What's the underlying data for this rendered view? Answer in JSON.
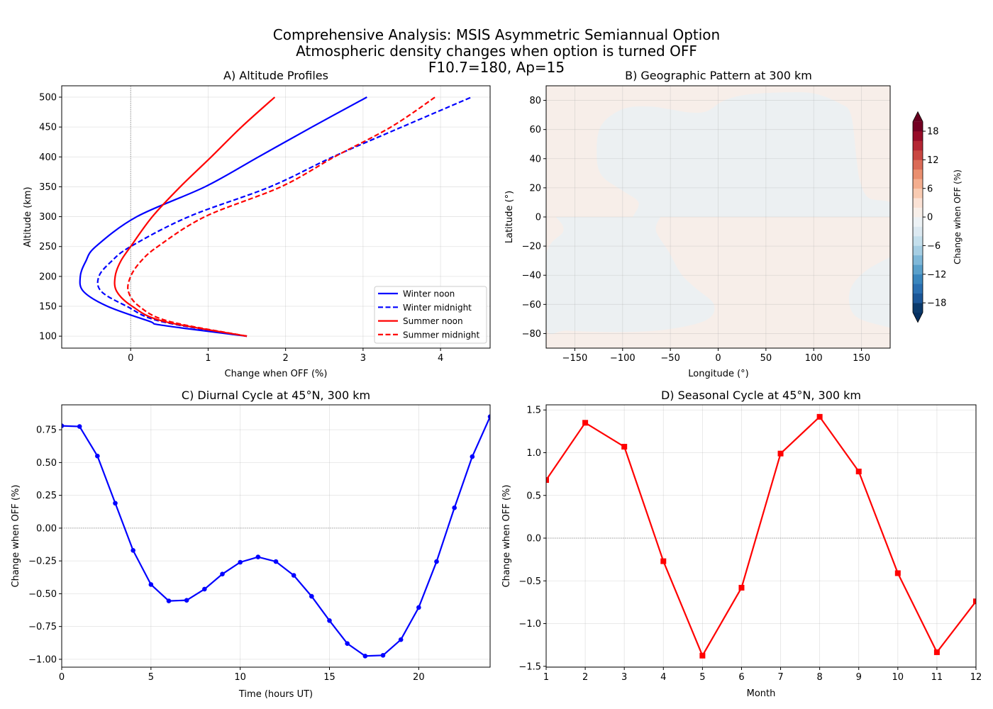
{
  "figure": {
    "title_lines": [
      "Comprehensive Analysis: MSIS Asymmetric Semiannual Option",
      "Atmospheric density changes when option is turned OFF",
      "F10.7=180, Ap=15"
    ]
  },
  "chart_data": [
    {
      "id": "A",
      "type": "line",
      "title": "A) Altitude Profiles",
      "xlabel": "Change when OFF (%)",
      "ylabel": "Altitude (km)",
      "xlim": [
        -0.89,
        4.64
      ],
      "ylim": [
        80,
        519
      ],
      "xticks": [
        0,
        1,
        2,
        3,
        4
      ],
      "yticks": [
        100,
        150,
        200,
        250,
        300,
        350,
        400,
        450,
        500
      ],
      "grid": true,
      "reference_line": {
        "axis": "x",
        "value": 0
      },
      "legend_position": "lower right",
      "series": [
        {
          "name": "Winter noon",
          "color": "#0000ff",
          "dash": false,
          "altitude": [
            100,
            118,
            125,
            150,
            175,
            200,
            225,
            250,
            300,
            350,
            400,
            450,
            500
          ],
          "change": [
            1.5,
            0.42,
            0.24,
            -0.3,
            -0.61,
            -0.65,
            -0.58,
            -0.45,
            0.08,
            0.96,
            1.65,
            2.34,
            3.05
          ]
        },
        {
          "name": "Winter midnight",
          "color": "#0000ff",
          "dash": true,
          "altitude": [
            100,
            125,
            150,
            175,
            200,
            225,
            250,
            300,
            350,
            400,
            450,
            500
          ],
          "change": [
            1.5,
            0.38,
            -0.05,
            -0.38,
            -0.41,
            -0.25,
            0.0,
            0.75,
            1.8,
            2.61,
            3.5,
            4.4
          ]
        },
        {
          "name": "Summer noon",
          "color": "#ff0000",
          "dash": false,
          "altitude": [
            100,
            125,
            150,
            175,
            200,
            225,
            250,
            300,
            350,
            400,
            450,
            500
          ],
          "change": [
            1.5,
            0.42,
            0.02,
            -0.18,
            -0.2,
            -0.13,
            0.0,
            0.28,
            0.64,
            1.04,
            1.43,
            1.86
          ]
        },
        {
          "name": "Summer midnight",
          "color": "#ff0000",
          "dash": true,
          "altitude": [
            100,
            125,
            150,
            175,
            200,
            225,
            250,
            300,
            350,
            400,
            450,
            500
          ],
          "change": [
            1.5,
            0.49,
            0.11,
            -0.03,
            0.0,
            0.13,
            0.35,
            0.96,
            1.94,
            2.63,
            3.36,
            3.93
          ]
        }
      ]
    },
    {
      "id": "B",
      "type": "heatmap",
      "title": "B) Geographic Pattern at 300 km",
      "xlabel": "Longitude (°)",
      "ylabel": "Latitude (°)",
      "xlim": [
        -180,
        180
      ],
      "ylim": [
        -90,
        90
      ],
      "xticks": [
        -150,
        -100,
        -50,
        0,
        50,
        100,
        150
      ],
      "yticks": [
        -80,
        -60,
        -40,
        -20,
        0,
        20,
        40,
        60,
        80
      ],
      "grid": true,
      "colorbar": {
        "label": "Change when OFF (%)",
        "range": [
          -20,
          20
        ],
        "step": 2,
        "ticks": [
          -18,
          -12,
          -6,
          0,
          6,
          12,
          18
        ],
        "extend": "both",
        "colormap": "RdBu_r",
        "colors": [
          "#0b3a6b",
          "#1b5697",
          "#2a6fb0",
          "#3a86bd",
          "#5aa0ca",
          "#7fb8d8",
          "#a6cee3",
          "#c4dfec",
          "#dce9f1",
          "#edf2f5",
          "#f8efe9",
          "#fbe2d5",
          "#f9cbb2",
          "#f4ae8f",
          "#ea8f6f",
          "#db6b57",
          "#c94741",
          "#b42633",
          "#970c28",
          "#730022"
        ],
        "extend_colors": [
          "#053061",
          "#67001f"
        ]
      },
      "background_level": "0 to 2",
      "background_color": "#f7eee9",
      "regions_level": "-2 to 0",
      "regions_color": "#ecf0f2",
      "negative_regions": [
        [
          [
            -89.4,
            0
          ],
          [
            -83.3,
            9.9
          ],
          [
            -100,
            18
          ],
          [
            -121,
            27.8
          ],
          [
            -127,
            40.8
          ],
          [
            -123,
            62
          ],
          [
            -100,
            74
          ],
          [
            -72.7,
            75.8
          ],
          [
            -51.5,
            74
          ],
          [
            -30,
            71.7
          ],
          [
            -12,
            72.5
          ],
          [
            6,
            79.8
          ],
          [
            30,
            83.9
          ],
          [
            70,
            85.5
          ],
          [
            100,
            84.7
          ],
          [
            127,
            78
          ],
          [
            139,
            70
          ],
          [
            145,
            39
          ],
          [
            148.5,
            24.5
          ],
          [
            157.6,
            13
          ],
          [
            180,
            10
          ],
          [
            180,
            0
          ]
        ],
        [
          [
            -169.7,
            0
          ],
          [
            -162,
            -9.6
          ],
          [
            -180,
            -25.9
          ],
          [
            -180,
            -76
          ],
          [
            -157.6,
            -78
          ],
          [
            -100,
            -79
          ],
          [
            -51.5,
            -77
          ],
          [
            -12,
            -70.6
          ],
          [
            -4.5,
            -60
          ],
          [
            -24,
            -48.6
          ],
          [
            -39,
            -38.9
          ],
          [
            -51.5,
            -24
          ],
          [
            -65,
            -9.6
          ],
          [
            -60.6,
            0
          ]
        ],
        [
          [
            180,
            -27.5
          ],
          [
            154.5,
            -37
          ],
          [
            139,
            -48.6
          ],
          [
            138,
            -61.6
          ],
          [
            148.5,
            -70
          ],
          [
            180,
            -76
          ]
        ]
      ]
    },
    {
      "id": "C",
      "type": "line",
      "title": "C) Diurnal Cycle at 45°N, 300 km",
      "xlabel": "Time (hours UT)",
      "ylabel": "Change when OFF (%)",
      "xlim": [
        0,
        24
      ],
      "ylim": [
        -1.06,
        0.94
      ],
      "xticks": [
        0,
        5,
        10,
        15,
        20
      ],
      "yticks": [
        -1.0,
        -0.75,
        -0.5,
        -0.25,
        0.0,
        0.25,
        0.5,
        0.75
      ],
      "ytick_decimals": 2,
      "grid": true,
      "reference_line": {
        "axis": "y",
        "value": 0
      },
      "series": [
        {
          "color": "#0000ff",
          "marker": "circle",
          "x": [
            0,
            1,
            2,
            3,
            4,
            5,
            6,
            7,
            8,
            9,
            10,
            11,
            12,
            13,
            14,
            15,
            16,
            17,
            18,
            19,
            20,
            21,
            22,
            23,
            24
          ],
          "y": [
            0.78,
            0.775,
            0.55,
            0.19,
            -0.17,
            -0.43,
            -0.555,
            -0.55,
            -0.465,
            -0.35,
            -0.26,
            -0.22,
            -0.255,
            -0.36,
            -0.52,
            -0.705,
            -0.88,
            -0.975,
            -0.97,
            -0.85,
            -0.605,
            -0.255,
            0.155,
            0.545,
            0.85
          ]
        }
      ]
    },
    {
      "id": "D",
      "type": "line",
      "title": "D) Seasonal Cycle at 45°N, 300 km",
      "xlabel": "Month",
      "ylabel": "Change when OFF (%)",
      "xlim": [
        1,
        12
      ],
      "ylim": [
        -1.51,
        1.56
      ],
      "xticks": [
        1,
        2,
        3,
        4,
        5,
        6,
        7,
        8,
        9,
        10,
        11,
        12
      ],
      "yticks": [
        -1.5,
        -1.0,
        -0.5,
        0.0,
        0.5,
        1.0,
        1.5
      ],
      "ytick_decimals": 1,
      "grid": true,
      "reference_line": {
        "axis": "y",
        "value": 0
      },
      "series": [
        {
          "color": "#ff0000",
          "marker": "square",
          "x": [
            1,
            2,
            3,
            4,
            5,
            6,
            7,
            8,
            9,
            10,
            11,
            12
          ],
          "y": [
            0.68,
            1.35,
            1.07,
            -0.27,
            -1.375,
            -0.58,
            0.99,
            1.42,
            0.78,
            -0.41,
            -1.335,
            -0.74
          ]
        }
      ]
    }
  ]
}
